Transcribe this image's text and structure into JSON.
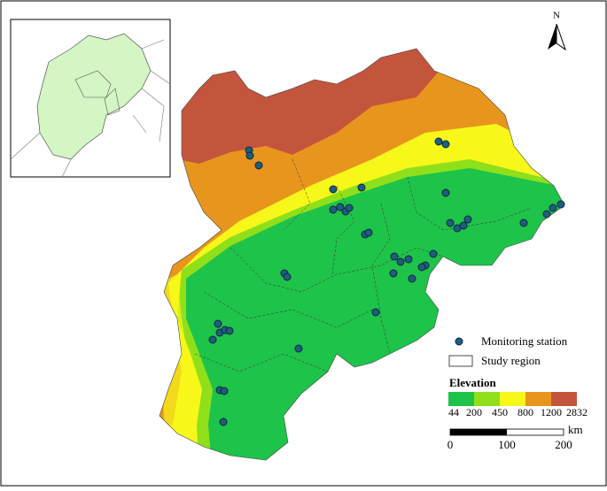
{
  "north": "N",
  "legend": {
    "station": "Monitoring station",
    "region": "Study region",
    "elevation": {
      "title": "Elevation",
      "breaks": [
        44,
        200,
        450,
        800,
        1200,
        2832
      ],
      "colors": [
        "#1ec34a",
        "#8fe01a",
        "#f7f71a",
        "#e8951e",
        "#c4553d"
      ]
    }
  },
  "scale_bar": {
    "ticks": [
      0,
      100,
      200
    ],
    "unit": "km"
  }
}
